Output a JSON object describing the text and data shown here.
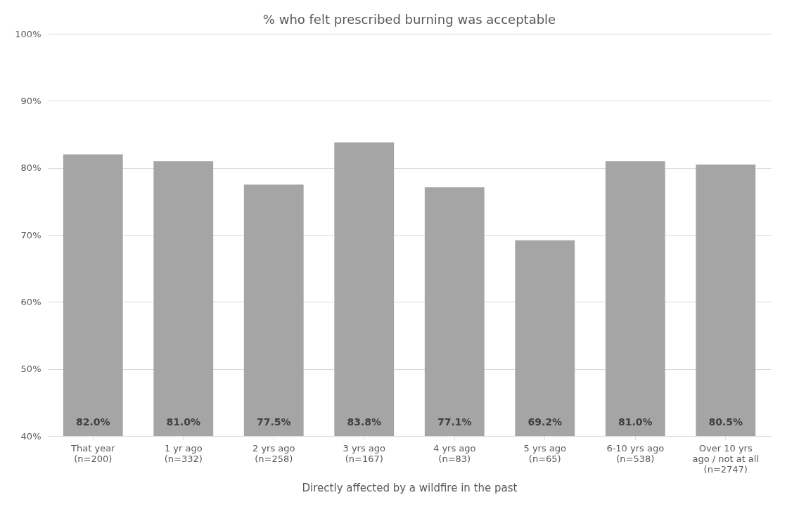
{
  "chart_data": {
    "type": "bar",
    "title": "% who felt prescribed burning was acceptable",
    "xlabel": "Directly affected by a wildfire in the past",
    "categories": [
      "That year\n(n=200)",
      "1 yr ago\n(n=332)",
      "2 yrs ago\n(n=258)",
      "3 yrs ago\n(n=167)",
      "4 yrs ago\n(n=83)",
      "5 yrs ago\n(n=65)",
      "6-10 yrs ago\n(n=538)",
      "Over 10 yrs\nago / not at all\n(n=2747)"
    ],
    "values": [
      82.0,
      81.0,
      77.5,
      83.8,
      77.1,
      69.2,
      81.0,
      80.5
    ],
    "value_labels": [
      "82.0%",
      "81.0%",
      "77.5%",
      "83.8%",
      "77.1%",
      "69.2%",
      "81.0%",
      "80.5%"
    ],
    "color": "#a5a5a5",
    "ylim": [
      40,
      100
    ],
    "yticks": [
      {
        "value": 40,
        "label": "40%"
      },
      {
        "value": 50,
        "label": "50%"
      },
      {
        "value": 60,
        "label": "60%"
      },
      {
        "value": 70,
        "label": "70%"
      },
      {
        "value": 80,
        "label": "80%"
      },
      {
        "value": 90,
        "label": "90%"
      },
      {
        "value": 100,
        "label": "100%"
      }
    ],
    "grid": "y"
  }
}
